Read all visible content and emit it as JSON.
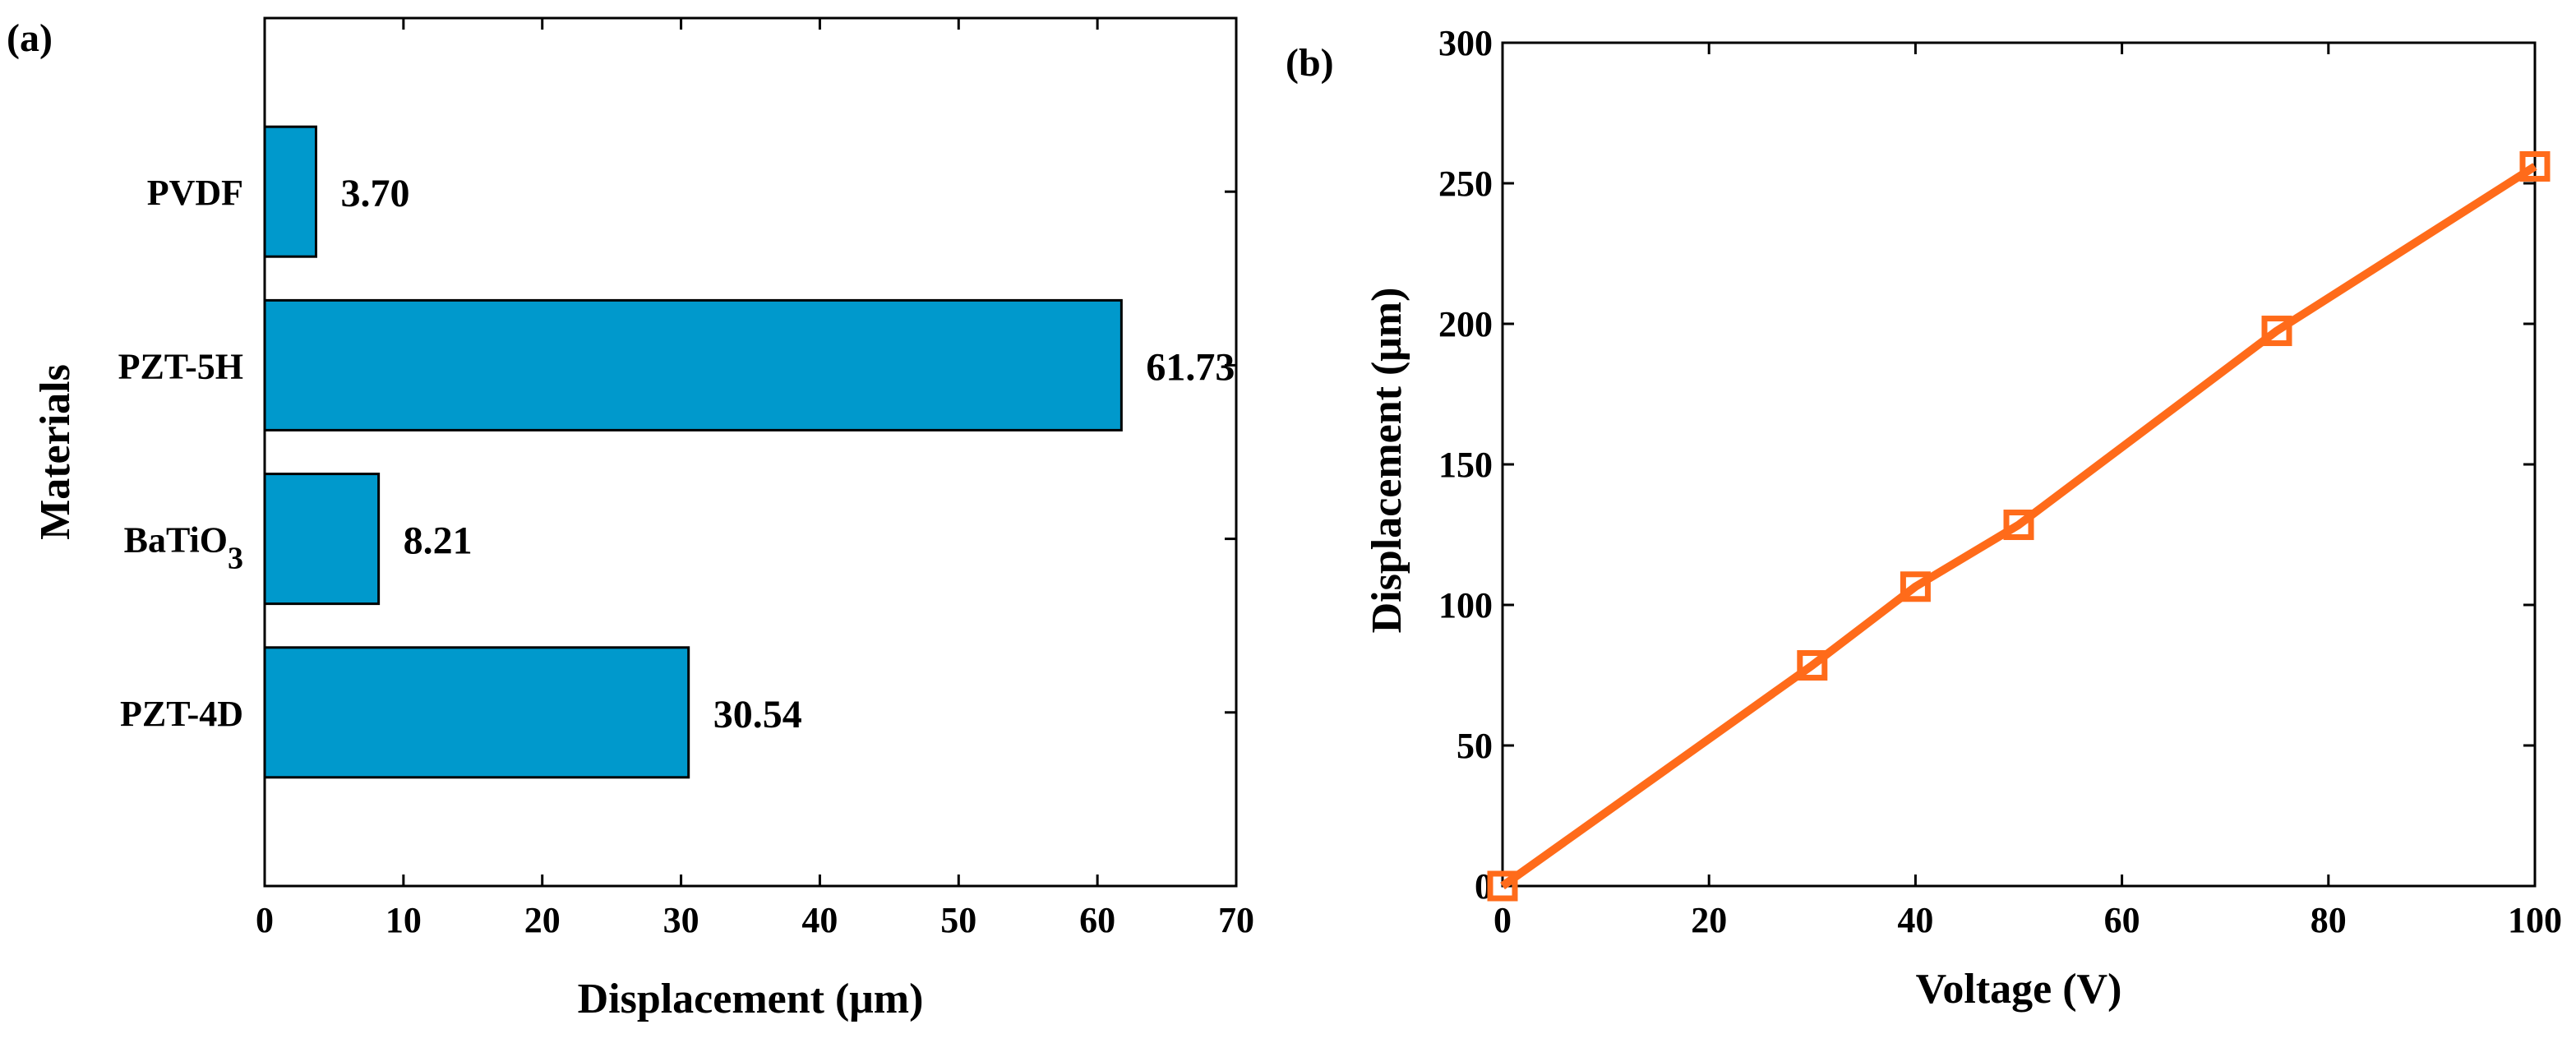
{
  "colors": {
    "bar": "#0099cc",
    "line": "#ff6b1a",
    "axis": "#000000"
  },
  "chart_data": [
    {
      "panel": "(a)",
      "type": "bar",
      "orientation": "horizontal",
      "categories": [
        "PZT-4D",
        "BaTiO3",
        "PZT-5H",
        "PVDF"
      ],
      "category_display": [
        {
          "main": "PZT-4D",
          "sub": ""
        },
        {
          "main": "BaTiO",
          "sub": "3"
        },
        {
          "main": "PZT-5H",
          "sub": ""
        },
        {
          "main": "PVDF",
          "sub": ""
        }
      ],
      "values": [
        30.54,
        8.21,
        61.73,
        3.7
      ],
      "value_labels": [
        "30.54",
        "8.21",
        "61.73",
        "3.70"
      ],
      "xlabel": "Displacement (μm)",
      "ylabel": "Materials",
      "xlim": [
        0,
        70
      ],
      "xticks": [
        0,
        10,
        20,
        30,
        40,
        50,
        60,
        70
      ],
      "grid": false
    },
    {
      "panel": "(b)",
      "type": "line",
      "marker": "square",
      "x": [
        0,
        30,
        40,
        50,
        75,
        100
      ],
      "y": [
        0,
        78.5,
        106.5,
        128.5,
        197.5,
        256
      ],
      "xlabel": "Voltage (V)",
      "ylabel": "Displacement (μm)",
      "xlim": [
        0,
        100
      ],
      "ylim": [
        0,
        300
      ],
      "xticks": [
        0,
        20,
        40,
        60,
        80,
        100
      ],
      "yticks": [
        0,
        50,
        100,
        150,
        200,
        250,
        300
      ],
      "grid": false
    }
  ]
}
